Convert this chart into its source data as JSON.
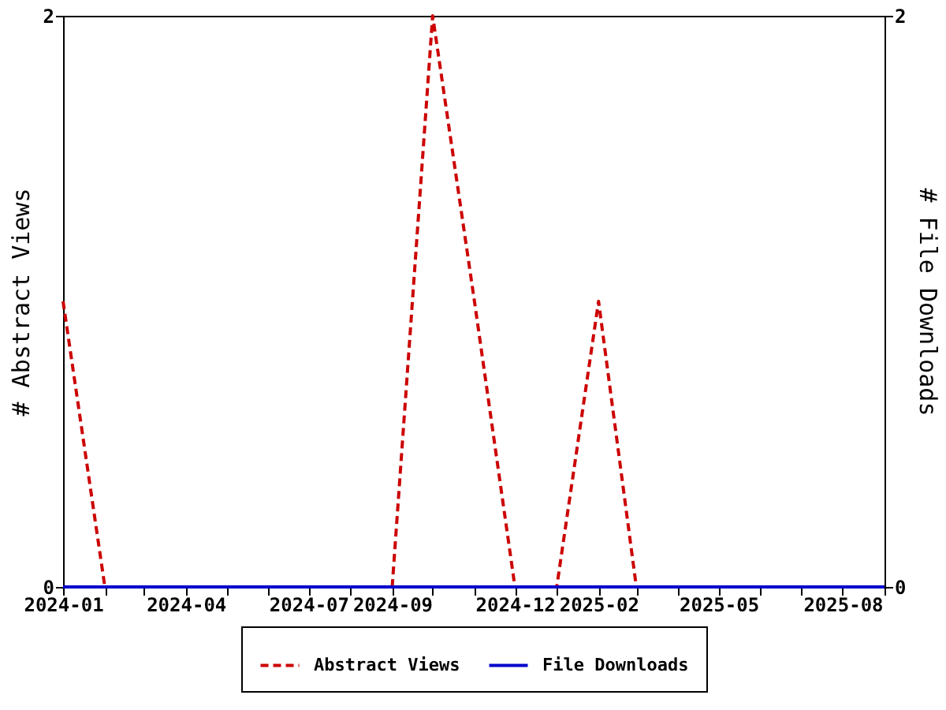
{
  "chart_data": {
    "type": "line",
    "x": [
      "2024-01",
      "2024-02",
      "2024-03",
      "2024-04",
      "2024-05",
      "2024-06",
      "2024-07",
      "2024-08",
      "2024-09",
      "2024-10",
      "2024-11",
      "2024-12",
      "2025-01",
      "2025-02",
      "2025-03",
      "2025-04",
      "2025-05",
      "2025-06",
      "2025-07",
      "2025-08",
      "2025-09"
    ],
    "series": [
      {
        "name": "Abstract Views",
        "color": "#cc0000",
        "line_style": "dashed",
        "values": [
          1,
          0,
          null,
          null,
          null,
          null,
          null,
          null,
          0,
          2,
          1,
          0,
          0,
          1,
          0,
          null,
          null,
          null,
          null,
          null,
          null
        ]
      },
      {
        "name": "File Downloads",
        "color": "#0000cc",
        "line_style": "solid",
        "axis": "y2",
        "values": [
          0,
          0,
          0,
          0,
          0,
          0,
          0,
          0,
          0,
          0,
          0,
          0,
          0,
          0,
          0,
          0,
          0,
          0,
          0,
          0,
          0
        ]
      }
    ],
    "ylabel": "# Abstract Views",
    "y2label": "# File Downloads",
    "xlim": [
      "2024-01",
      "2025-09"
    ],
    "xticks": [
      "2024-01",
      {
        "value": "2024-02",
        "label": null
      },
      {
        "value": "2024-03",
        "label": null
      },
      "2024-04",
      {
        "value": "2024-05",
        "label": null
      },
      {
        "value": "2024-06",
        "label": null
      },
      "2024-07",
      {
        "value": "2024-08",
        "label": null
      },
      "2024-09",
      {
        "value": "2024-10",
        "label": null
      },
      {
        "value": "2024-11",
        "label": null
      },
      "2024-12",
      {
        "value": "2025-01",
        "label": null
      },
      "2025-02",
      {
        "value": "2025-03",
        "label": null
      },
      {
        "value": "2025-04",
        "label": null
      },
      "2025-05",
      {
        "value": "2025-06",
        "label": null
      },
      {
        "value": "2025-07",
        "label": null
      },
      "2025-08",
      {
        "value": "2025-09",
        "label": null
      }
    ],
    "ylim": [
      0,
      2
    ],
    "yticks": [
      0,
      2
    ],
    "y2lim": [
      0,
      2
    ],
    "y2ticks": [
      0,
      2
    ],
    "grid": false,
    "legend": "bottom"
  }
}
